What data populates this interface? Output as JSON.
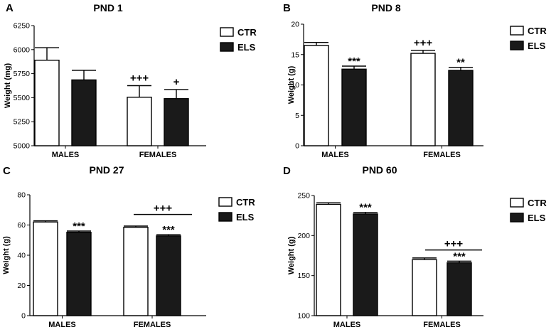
{
  "chart_data": [
    {
      "type": "bar",
      "panel": "A",
      "title": "PND 1",
      "xlabel": "",
      "ylabel": "Weight (mg)",
      "ylim": [
        5000,
        6250
      ],
      "yticks": [
        5000,
        5250,
        5500,
        5750,
        6000,
        6250
      ],
      "categories": [
        "MALES",
        "FEMALES"
      ],
      "series": [
        {
          "name": "CTR",
          "color": "#ffffff",
          "values": [
            5890,
            5505
          ],
          "errors": [
            130,
            120
          ]
        },
        {
          "name": "ELS",
          "color": "#1a1a1a",
          "values": [
            5685,
            5490
          ],
          "errors": [
            100,
            95
          ]
        }
      ],
      "annotations": [
        {
          "category": 1,
          "series": 0,
          "text": "+++"
        },
        {
          "category": 1,
          "series": 1,
          "text": "+"
        }
      ]
    },
    {
      "type": "bar",
      "panel": "B",
      "title": "PND 8",
      "xlabel": "",
      "ylabel": "Weight (g)",
      "ylim": [
        0,
        20
      ],
      "yticks": [
        0,
        5,
        10,
        15,
        20
      ],
      "categories": [
        "MALES",
        "FEMALES"
      ],
      "series": [
        {
          "name": "CTR",
          "color": "#ffffff",
          "values": [
            16.5,
            15.2
          ],
          "errors": [
            0.5,
            0.5
          ]
        },
        {
          "name": "ELS",
          "color": "#1a1a1a",
          "values": [
            12.6,
            12.4
          ],
          "errors": [
            0.5,
            0.5
          ]
        }
      ],
      "annotations": [
        {
          "category": 0,
          "series": 1,
          "text": "***"
        },
        {
          "category": 1,
          "series": 0,
          "text": "+++"
        },
        {
          "category": 1,
          "series": 1,
          "text": "**"
        }
      ]
    },
    {
      "type": "bar",
      "panel": "C",
      "title": "PND 27",
      "xlabel": "",
      "ylabel": "Weight (g)",
      "ylim": [
        0,
        80
      ],
      "yticks": [
        0,
        20,
        40,
        60,
        80
      ],
      "categories": [
        "MALES",
        "FEMALES"
      ],
      "series": [
        {
          "name": "CTR",
          "color": "#ffffff",
          "values": [
            62.0,
            58.5
          ],
          "errors": [
            0.8,
            0.8
          ]
        },
        {
          "name": "ELS",
          "color": "#1a1a1a",
          "values": [
            55.2,
            52.8
          ],
          "errors": [
            0.8,
            0.8
          ]
        }
      ],
      "annotations": [
        {
          "category": 0,
          "series": 1,
          "text": "***"
        },
        {
          "category": 1,
          "series": 1,
          "text": "***"
        }
      ],
      "bracket": {
        "category": 1,
        "text": "+++",
        "y": 67
      }
    },
    {
      "type": "bar",
      "panel": "D",
      "title": "PND 60",
      "xlabel": "",
      "ylabel": "Weight (g)",
      "ylim": [
        100,
        250
      ],
      "yticks": [
        100,
        150,
        200,
        250
      ],
      "categories": [
        "MALES",
        "FEMALES"
      ],
      "series": [
        {
          "name": "CTR",
          "color": "#ffffff",
          "values": [
            239,
            170
          ],
          "errors": [
            2,
            2
          ]
        },
        {
          "name": "ELS",
          "color": "#1a1a1a",
          "values": [
            227,
            166
          ],
          "errors": [
            2,
            2
          ]
        }
      ],
      "annotations": [
        {
          "category": 0,
          "series": 1,
          "text": "***"
        },
        {
          "category": 1,
          "series": 1,
          "text": "***"
        }
      ],
      "bracket": {
        "category": 1,
        "text": "+++",
        "y": 182
      }
    }
  ]
}
